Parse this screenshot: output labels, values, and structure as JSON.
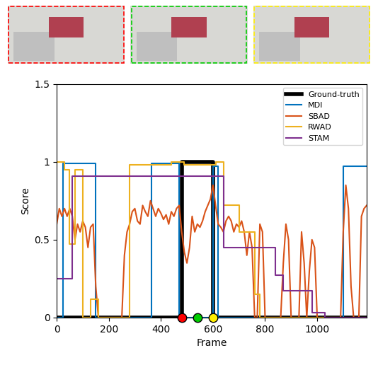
{
  "chart_data": {
    "type": "line",
    "x_label": "Frame",
    "y_label": "Score",
    "xlim": [
      0,
      1190
    ],
    "ylim": [
      0,
      1.5
    ],
    "xticks": [
      0,
      200,
      400,
      600,
      800,
      1000
    ],
    "yticks": [
      0,
      0.5,
      1,
      1.5
    ],
    "legend": "upper right",
    "series": [
      {
        "name": "Ground-truth",
        "color": "#000000",
        "line_style": "steps",
        "x": [
          0,
          480,
          600,
          1190
        ],
        "values": [
          0,
          1,
          0,
          0
        ]
      },
      {
        "name": "MDI",
        "color": "#0072BD",
        "line_style": "steps",
        "x": [
          0,
          25,
          150,
          365,
          470,
          600,
          620,
          1100,
          1190
        ],
        "values": [
          0,
          0.99,
          0,
          0.99,
          0,
          0.97,
          0,
          0.97,
          0.97
        ]
      },
      {
        "name": "SBAD",
        "color": "#D95319",
        "line_style": "solid",
        "x": [
          0,
          10,
          20,
          30,
          40,
          50,
          60,
          70,
          80,
          90,
          100,
          110,
          120,
          130,
          140,
          150,
          160,
          170,
          180,
          190,
          200,
          210,
          220,
          230,
          240,
          250,
          260,
          270,
          280,
          290,
          300,
          310,
          320,
          330,
          340,
          350,
          360,
          370,
          380,
          390,
          400,
          410,
          420,
          430,
          440,
          450,
          460,
          470,
          480,
          490,
          500,
          510,
          520,
          530,
          540,
          550,
          560,
          570,
          580,
          590,
          600,
          610,
          620,
          630,
          640,
          650,
          660,
          670,
          680,
          690,
          700,
          710,
          720,
          730,
          740,
          750,
          760,
          770,
          780,
          790,
          800,
          810,
          820,
          830,
          840,
          850,
          860,
          870,
          880,
          890,
          900,
          910,
          920,
          930,
          940,
          950,
          960,
          970,
          980,
          990,
          1000,
          1010,
          1020,
          1030,
          1040,
          1050,
          1060,
          1070,
          1080,
          1090,
          1100,
          1110,
          1120,
          1130,
          1140,
          1150,
          1160,
          1170,
          1180,
          1190
        ],
        "values": [
          0.6,
          0.7,
          0.65,
          0.7,
          0.65,
          0.7,
          0.65,
          0.5,
          0.6,
          0.55,
          0.62,
          0.58,
          0.45,
          0.58,
          0.6,
          0.2,
          0,
          0,
          0,
          0,
          0,
          0,
          0,
          0,
          0,
          0,
          0.4,
          0.55,
          0.6,
          0.68,
          0.7,
          0.62,
          0.6,
          0.72,
          0.68,
          0.65,
          0.75,
          0.7,
          0.65,
          0.7,
          0.67,
          0.63,
          0.66,
          0.6,
          0.68,
          0.65,
          0.7,
          0.72,
          0.55,
          0.42,
          0.35,
          0.45,
          0.65,
          0.55,
          0.6,
          0.58,
          0.62,
          0.68,
          0.72,
          0.76,
          0.85,
          0.72,
          0.6,
          0.58,
          0.55,
          0.62,
          0.65,
          0.62,
          0.55,
          0.6,
          0.58,
          0.62,
          0.55,
          0.4,
          0.55,
          0.45,
          0,
          0,
          0.6,
          0.55,
          0,
          0,
          0,
          0,
          0,
          0,
          0,
          0.35,
          0.6,
          0.5,
          0,
          0,
          0,
          0,
          0.55,
          0.35,
          0,
          0.3,
          0.5,
          0.45,
          0,
          0,
          0,
          0,
          0,
          0,
          0,
          0,
          0,
          0,
          0.55,
          0.85,
          0.7,
          0.2,
          0,
          0,
          0,
          0.65,
          0.7,
          0.72
        ]
      },
      {
        "name": "RWAD",
        "color": "#EDB120",
        "line_style": "steps",
        "x": [
          0,
          30,
          50,
          70,
          100,
          130,
          160,
          280,
          440,
          490,
          610,
          640,
          700,
          760,
          780,
          1190
        ],
        "values": [
          1.0,
          0.95,
          0.47,
          0.95,
          0,
          0.12,
          0,
          0.98,
          1.0,
          0.98,
          1.0,
          0.72,
          0.55,
          0.15,
          0,
          0
        ]
      },
      {
        "name": "STAM",
        "color": "#7E2F8E",
        "line_style": "steps",
        "x": [
          0,
          60,
          640,
          840,
          870,
          980,
          1030,
          1190
        ],
        "values": [
          0.25,
          0.91,
          0.45,
          0.27,
          0.17,
          0.03,
          0,
          0
        ]
      }
    ],
    "highlighted_frames": {
      "x": [
        480,
        540,
        600
      ],
      "colors": [
        "#FF0000",
        "#00CC00",
        "#FFEE00"
      ]
    }
  }
}
